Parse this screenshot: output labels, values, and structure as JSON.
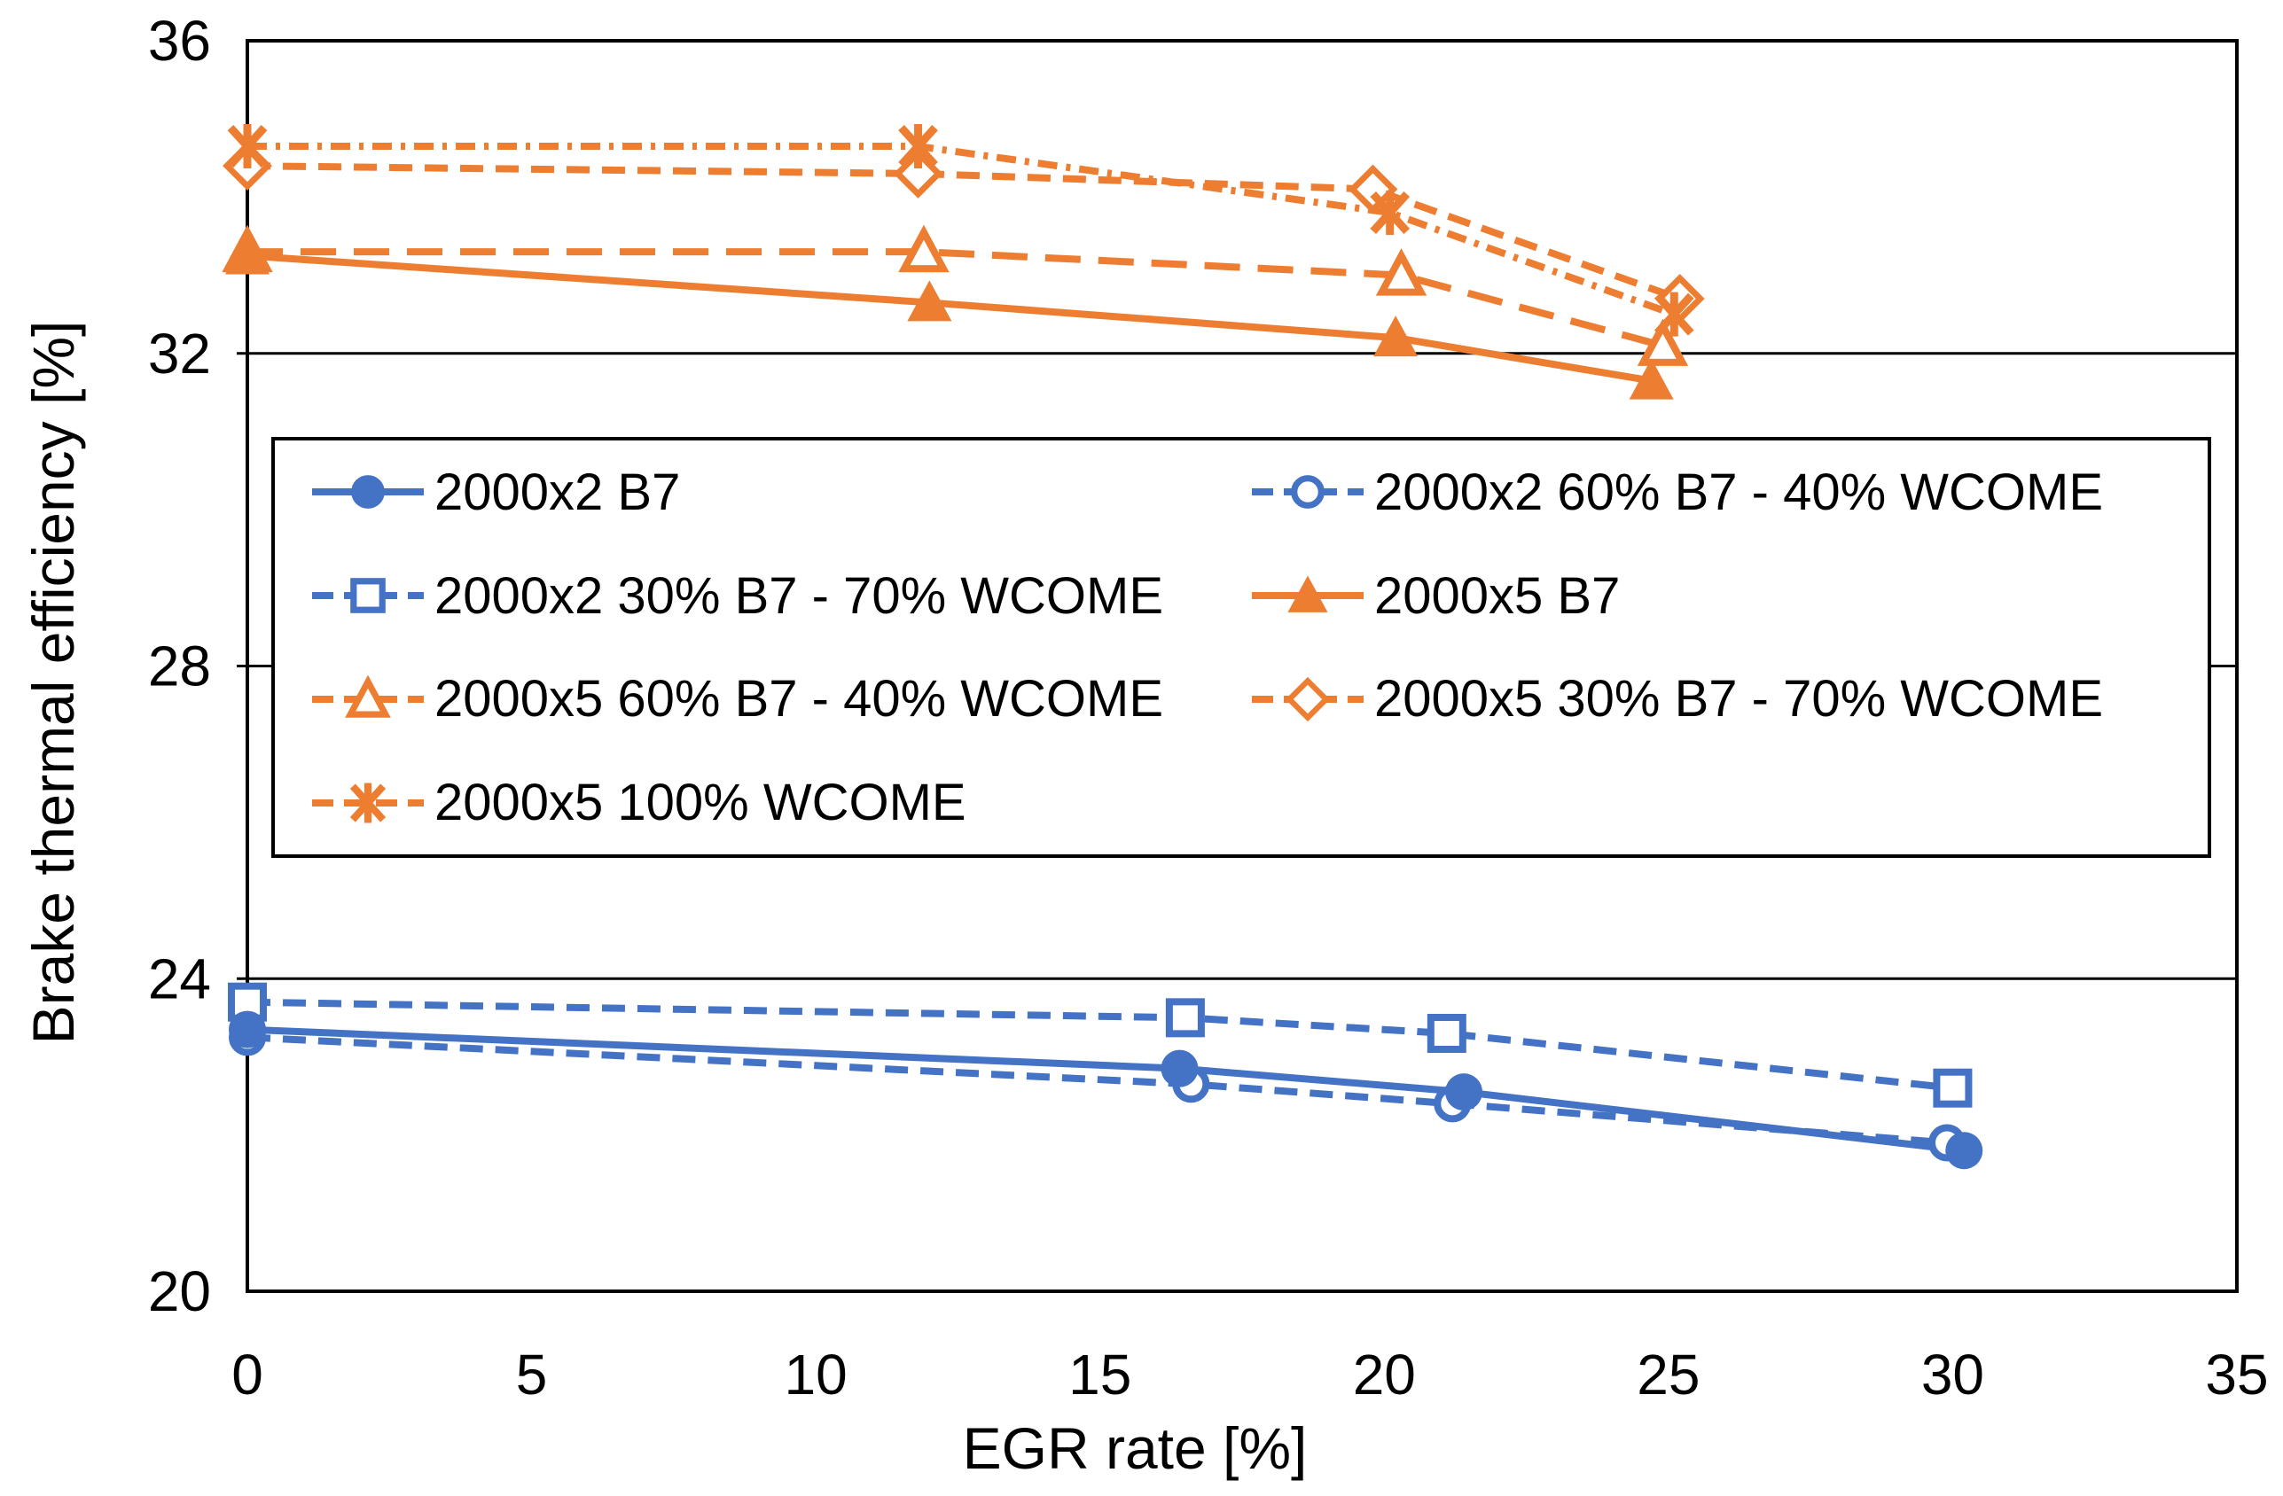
{
  "chart_data": {
    "type": "line",
    "title": "",
    "xlabel": "EGR rate [%]",
    "ylabel": "Brake thermal efficiency [%]",
    "xlim": [
      0,
      35
    ],
    "ylim": [
      20,
      36
    ],
    "xticks": [
      0,
      5,
      10,
      15,
      20,
      25,
      30,
      35
    ],
    "yticks": [
      20,
      24,
      28,
      32,
      36
    ],
    "gridlines": {
      "horizontal_at": [
        24,
        28,
        32
      ],
      "border": true,
      "vertical": false
    },
    "legend_position": "inside plot, upper-left of lower half",
    "colors": {
      "blue": "#4472C4",
      "orange": "#ED7D31",
      "axis": "#000000",
      "background": "#FFFFFF"
    },
    "series": [
      {
        "name": "2000x2 B7",
        "color": "#4472C4",
        "marker": "circle-filled",
        "line": "solid",
        "x": [
          0,
          16.4,
          21.4,
          30.2
        ],
        "y": [
          23.35,
          22.85,
          22.55,
          21.8
        ]
      },
      {
        "name": "2000x2 60% B7 - 40% WCOME",
        "color": "#4472C4",
        "marker": "circle-open",
        "line": "dash",
        "x": [
          0,
          16.6,
          21.2,
          29.9
        ],
        "y": [
          23.25,
          22.65,
          22.4,
          21.9
        ]
      },
      {
        "name": "2000x2 30% B7 - 70% WCOME",
        "color": "#4472C4",
        "marker": "square-open",
        "line": "dash",
        "x": [
          0,
          16.5,
          21.1,
          30.0
        ],
        "y": [
          23.7,
          23.5,
          23.3,
          22.6
        ]
      },
      {
        "name": "2000x5 B7",
        "color": "#ED7D31",
        "marker": "triangle-filled",
        "line": "solid",
        "x": [
          0,
          12.0,
          20.2,
          24.7
        ],
        "y": [
          33.25,
          32.65,
          32.2,
          31.65
        ]
      },
      {
        "name": "2000x5 60% B7 - 40% WCOME",
        "color": "#ED7D31",
        "marker": "triangle-open",
        "line": "longdash",
        "x": [
          0,
          11.9,
          20.3,
          24.9
        ],
        "y": [
          33.3,
          33.3,
          33.0,
          32.1
        ]
      },
      {
        "name": "2000x5 30% B7 - 70% WCOME",
        "color": "#ED7D31",
        "marker": "diamond-open",
        "line": "dash",
        "x": [
          0,
          11.8,
          19.8,
          25.2
        ],
        "y": [
          34.4,
          34.3,
          34.1,
          32.7
        ]
      },
      {
        "name": "2000x5 100% WCOME",
        "color": "#ED7D31",
        "marker": "asterisk",
        "line": "dashdot",
        "x": [
          0,
          11.8,
          20.1,
          25.1
        ],
        "y": [
          34.65,
          34.65,
          33.8,
          32.5
        ]
      }
    ],
    "legend_rows": [
      [
        0,
        1
      ],
      [
        2,
        3
      ],
      [
        4,
        5
      ],
      [
        6
      ]
    ]
  }
}
